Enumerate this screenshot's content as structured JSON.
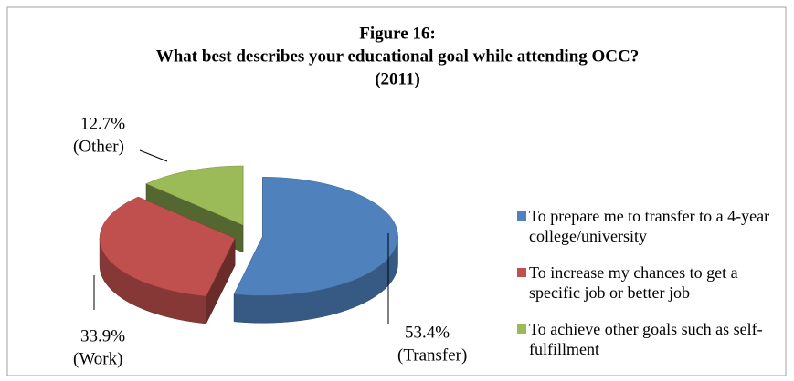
{
  "chart_data": {
    "type": "pie",
    "title": [
      "Figure 16:",
      "What best describes your educational goal while attending OCC?",
      "(2011)"
    ],
    "categories": [
      "To prepare me to transfer to a 4-year college/university",
      "To increase my chances to get a specific job or better job",
      "To achieve other goals such as self-fulfillment"
    ],
    "values": [
      53.4,
      33.9,
      12.7
    ],
    "value_labels": [
      "53.4%",
      "33.9%",
      "12.7%"
    ],
    "slice_tags": [
      "(Transfer)",
      "(Work)",
      "(Other)"
    ],
    "colors": [
      "#4f81bd",
      "#c0504d",
      "#9bbb59"
    ],
    "legend": "right"
  }
}
